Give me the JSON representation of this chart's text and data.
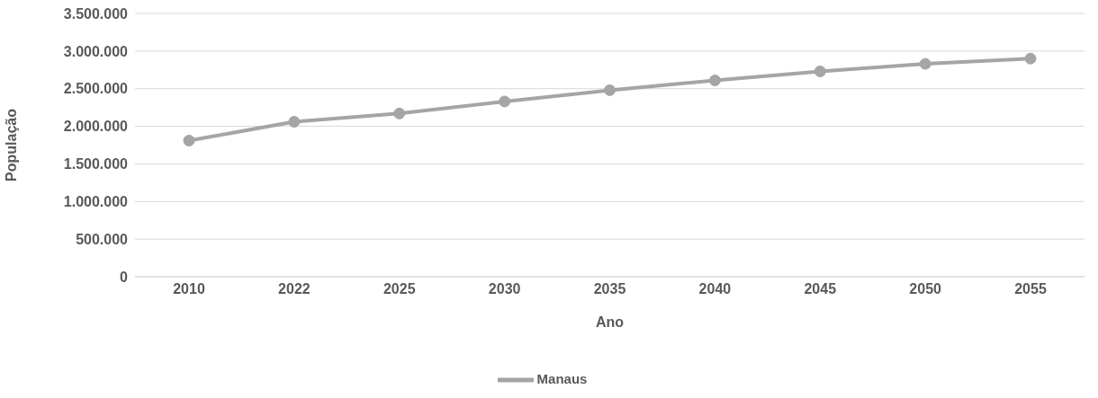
{
  "chart_data": {
    "type": "line",
    "xlabel": "Ano",
    "ylabel": "População",
    "categories": [
      "2010",
      "2022",
      "2025",
      "2030",
      "2035",
      "2040",
      "2045",
      "2050",
      "2055"
    ],
    "series": [
      {
        "name": "Manaus",
        "color": "#a5a5a5",
        "values": [
          1810000,
          2060000,
          2170000,
          2330000,
          2480000,
          2610000,
          2730000,
          2830000,
          2900000
        ]
      }
    ],
    "ylim": [
      0,
      3500000
    ],
    "yticks": [
      0,
      {
        "value": 500000,
        "label": "500.000"
      },
      {
        "value": 1000000,
        "label": "1.000.000"
      },
      {
        "value": 1500000,
        "label": "1.500.000"
      },
      {
        "value": 2000000,
        "label": "2.000.000"
      },
      {
        "value": 2500000,
        "label": "2.500.000"
      },
      {
        "value": 3000000,
        "label": "3.000.000"
      },
      {
        "value": 3500000,
        "label": "3.500.000"
      }
    ],
    "grid": "y",
    "legend": "bottom",
    "marker": "circle",
    "line_style": "solid"
  }
}
